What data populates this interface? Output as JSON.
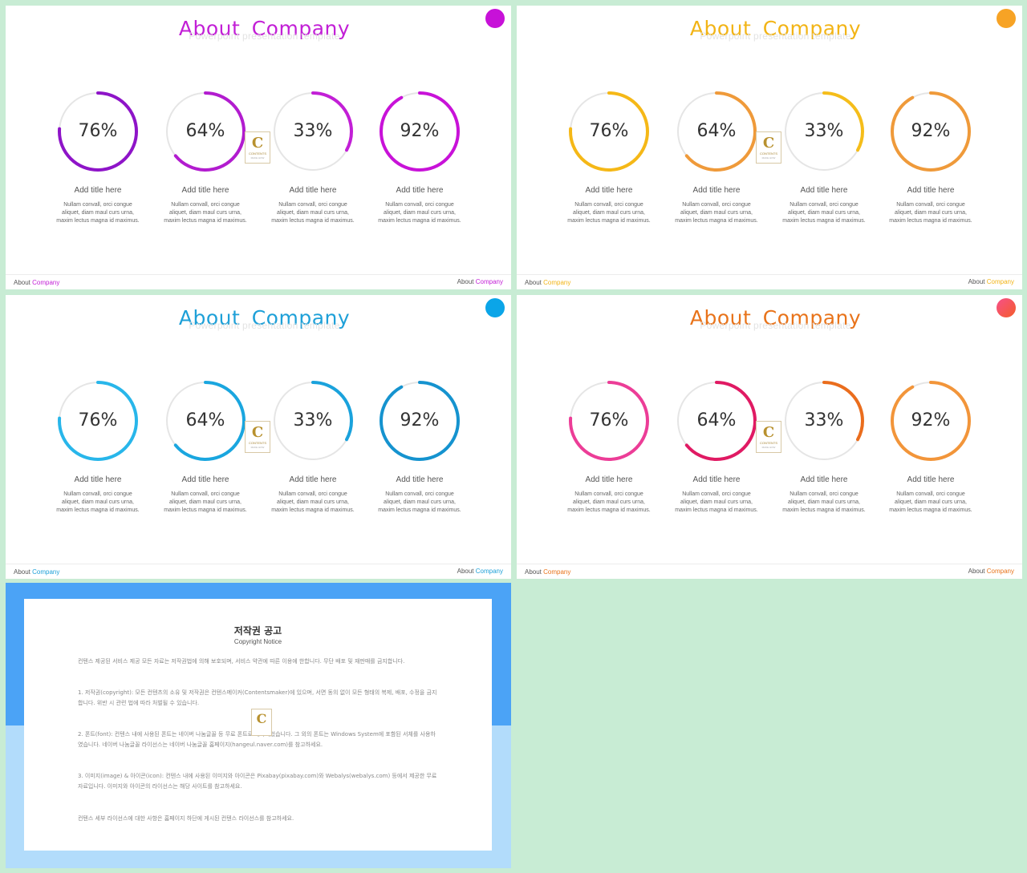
{
  "common": {
    "title_about": "About",
    "title_company": "Company",
    "subtitle": "Powerpoint presentation template",
    "item_title": "Add title here",
    "item_body": "Nullam convall, orci congue aliquet, diam maul curs urna, maxim lectus magna id maximus.",
    "footer_about": "About",
    "footer_company": "Company",
    "logo_letter": "C",
    "logo_text": "CONTENTS",
    "logo_sub": "MAKE HOW"
  },
  "slides": [
    {
      "accent": "#c21fd6",
      "dot": "#c711d8",
      "rings": [
        {
          "pct": 76,
          "label": "76%",
          "color": "#8e14c8"
        },
        {
          "pct": 64,
          "label": "64%",
          "color": "#b21ccf"
        },
        {
          "pct": 33,
          "label": "33%",
          "color": "#c21fd6"
        },
        {
          "pct": 92,
          "label": "92%",
          "color": "#c812d8"
        }
      ]
    },
    {
      "accent": "#f2b416",
      "dot": "#f7a325",
      "rings": [
        {
          "pct": 76,
          "label": "76%",
          "color": "#f5b817"
        },
        {
          "pct": 64,
          "label": "64%",
          "color": "#ef9a3a"
        },
        {
          "pct": 33,
          "label": "33%",
          "color": "#f5bd1a"
        },
        {
          "pct": 92,
          "label": "92%",
          "color": "#ef9a3a"
        }
      ]
    },
    {
      "accent": "#1ea0d8",
      "dot": "#0ba5e8",
      "rings": [
        {
          "pct": 76,
          "label": "76%",
          "color": "#28b6ea"
        },
        {
          "pct": 64,
          "label": "64%",
          "color": "#1aa6df"
        },
        {
          "pct": 33,
          "label": "33%",
          "color": "#1aa2dc"
        },
        {
          "pct": 92,
          "label": "92%",
          "color": "#1593cf"
        }
      ]
    },
    {
      "accent": "#e8731a",
      "dot": "#f2366f",
      "rings": [
        {
          "pct": 76,
          "label": "76%",
          "color": "#ec3d97"
        },
        {
          "pct": 64,
          "label": "64%",
          "color": "#e01a63"
        },
        {
          "pct": 33,
          "label": "33%",
          "color": "#ea6d1d"
        },
        {
          "pct": 92,
          "label": "92%",
          "color": "#f2953a"
        }
      ]
    }
  ],
  "copyright": {
    "title": "저작권 공고",
    "subtitle": "Copyright Notice",
    "intro": "컨텐스 제공된 서비스 제공 모든 자료는 저작권법에 의해 보호되며, 서비스 약관에 따른 이용에 한합니다. 무단 배포 및 재판매를 금지합니다.",
    "p1": "1. 저작권(copyright): 모든 컨텐츠의 소유 및 저작권은 컨텐스메이커(Contentsmaker)에 있으며, 서면 동의 없이 모든 형태의 복제, 배포, 수정을 금지합니다. 위반 시 관련 법에 따라 처벌될 수 있습니다.",
    "p2": "2. 폰트(font): 컨텐스 내에 사용된 폰트는 네이버 나눔글꼴 등 무료 폰트로 제작되었습니다. 그 외의 폰트는 Windows System에 포함된 서체를 사용하였습니다. 네이버 나눔글꼴 라이선스는 네이버 나눔글꼴 홈페이지(hangeul.naver.com)를 참고하세요.",
    "p3": "3. 이미지(image) & 아이콘(icon): 컨텐스 내에 사용된 이미지와 아이콘은 Pixabay(pixabay.com)와 Webalys(webalys.com) 등에서 제공한 무료 자료입니다. 이미지와 아이콘의 라이선스는 해당 사이트를 참고하세요.",
    "outro": "컨텐스 세부 라이선스에 대한 사항은 홈페이지 하단에 게시된 컨텐스 라이선스를 참고하세요."
  }
}
